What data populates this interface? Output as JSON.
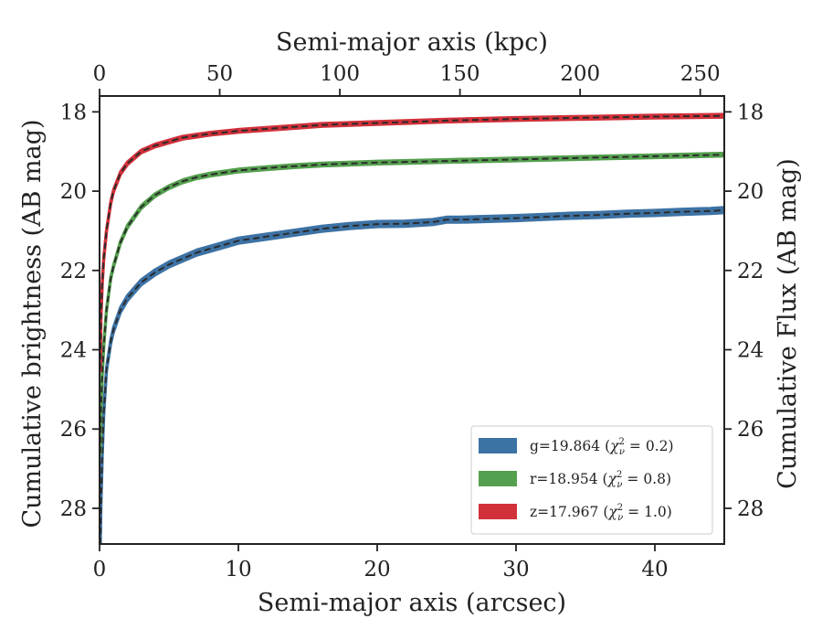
{
  "chart_data": {
    "type": "line",
    "top_xlabel": "Semi-major axis (kpc)",
    "xlabel": "Semi-major axis (arcsec)",
    "ylabel": "Cumulative brightness (AB mag)",
    "right_ylabel": "Cumulative Flux (AB mag)",
    "xlim": [
      0,
      45
    ],
    "ylim": [
      28.9,
      17.6
    ],
    "y_inverted": true,
    "top_xlim": [
      0,
      260
    ],
    "xticks": [
      0,
      10,
      20,
      30,
      40
    ],
    "yticks": [
      18,
      20,
      22,
      24,
      26,
      28
    ],
    "top_xticks": [
      0,
      50,
      100,
      150,
      200,
      250
    ],
    "grid": false,
    "legend_position": "lower-right",
    "series": [
      {
        "name": "g=19.864 (χ²ᵥ = 0.2)",
        "legend_main": "g=19.864 (",
        "legend_chi": "χ",
        "legend_sup": "2",
        "legend_sub": "ν",
        "legend_tail": " = 0.2)",
        "color": "#3d72a4",
        "band_width": 0.14,
        "x": [
          0.05,
          0.1,
          0.2,
          0.3,
          0.5,
          0.8,
          1.0,
          1.5,
          2,
          3,
          4,
          5,
          6,
          7,
          8,
          10,
          12,
          14,
          16,
          18,
          20,
          22,
          24,
          25,
          26,
          28,
          30,
          32,
          34,
          36,
          38,
          40,
          42,
          44,
          45
        ],
        "y": [
          28.9,
          27.9,
          26.6,
          25.6,
          24.5,
          23.8,
          23.5,
          23.0,
          22.7,
          22.3,
          22.05,
          21.85,
          21.7,
          21.55,
          21.45,
          21.25,
          21.15,
          21.05,
          20.95,
          20.88,
          20.83,
          20.82,
          20.78,
          20.72,
          20.72,
          20.7,
          20.68,
          20.65,
          20.62,
          20.6,
          20.57,
          20.55,
          20.52,
          20.5,
          20.48
        ]
      },
      {
        "name": "r=18.954 (χ²ᵥ = 0.8)",
        "legend_main": "r=18.954 (",
        "legend_chi": "χ",
        "legend_sup": "2",
        "legend_sub": "ν",
        "legend_tail": " = 0.8)",
        "color": "#55a04f",
        "band_width": 0.08,
        "x": [
          0.05,
          0.1,
          0.2,
          0.3,
          0.5,
          0.8,
          1.0,
          1.5,
          2,
          3,
          4,
          5,
          6,
          7,
          8,
          10,
          12,
          14,
          16,
          20,
          25,
          30,
          35,
          40,
          45
        ],
        "y": [
          26.6,
          25.5,
          24.6,
          23.9,
          23.0,
          22.2,
          21.9,
          21.3,
          20.9,
          20.4,
          20.1,
          19.9,
          19.75,
          19.65,
          19.58,
          19.48,
          19.42,
          19.37,
          19.33,
          19.28,
          19.24,
          19.2,
          19.16,
          19.12,
          19.08
        ]
      },
      {
        "name": "z=17.967 (χ²ᵥ = 1.0)",
        "legend_main": "z=17.967 (",
        "legend_chi": "χ",
        "legend_sup": "2",
        "legend_sub": "ν",
        "legend_tail": " = 1.0)",
        "color": "#d2313a",
        "band_width": 0.08,
        "x": [
          0.05,
          0.1,
          0.2,
          0.3,
          0.5,
          0.8,
          1.0,
          1.5,
          2,
          3,
          4,
          5,
          6,
          7,
          8,
          10,
          12,
          14,
          16,
          20,
          25,
          30,
          35,
          40,
          45
        ],
        "y": [
          24.5,
          23.2,
          22.3,
          21.7,
          21.0,
          20.3,
          20.0,
          19.55,
          19.3,
          19.0,
          18.85,
          18.75,
          18.65,
          18.6,
          18.55,
          18.48,
          18.43,
          18.38,
          18.33,
          18.28,
          18.22,
          18.18,
          18.15,
          18.12,
          18.1
        ]
      }
    ]
  }
}
